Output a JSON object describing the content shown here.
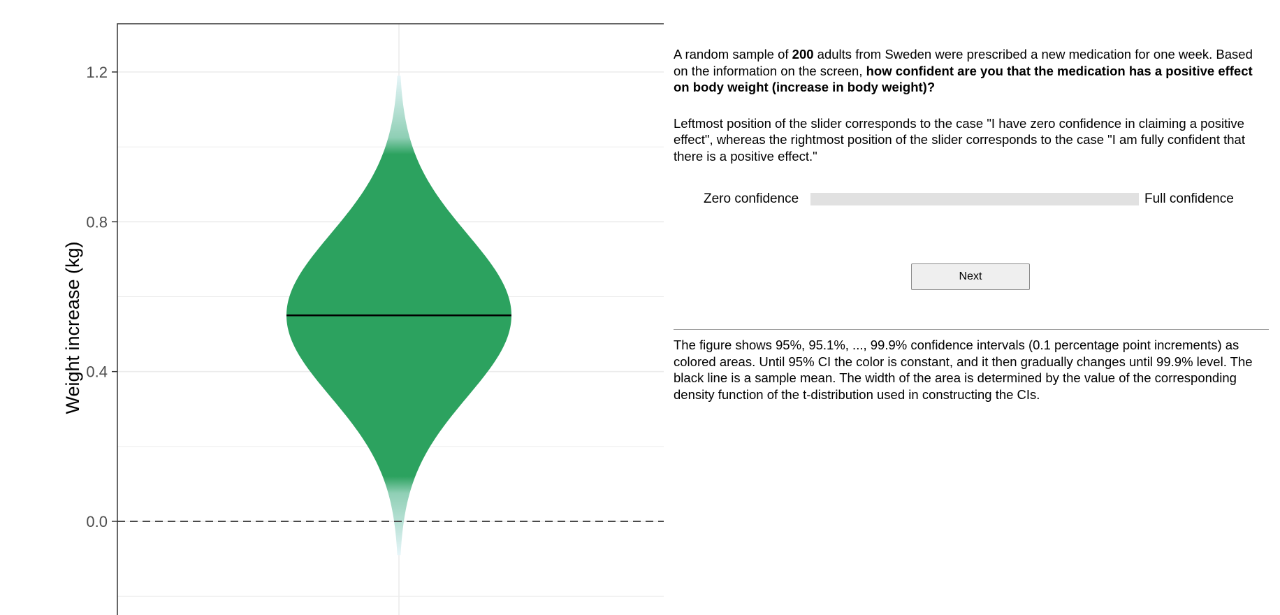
{
  "chart_data": {
    "type": "violin",
    "ylabel": "Weight increase (kg)",
    "yticks": [
      0.0,
      0.4,
      0.8,
      1.2
    ],
    "ytick_labels": [
      "0.0",
      "0.4",
      "0.8",
      "1.2"
    ],
    "ylim": [
      -0.22,
      1.33
    ],
    "mean": 0.55,
    "reference_line": 0.0,
    "ci95": [
      0.12,
      0.98
    ],
    "ci999": [
      -0.09,
      1.19
    ],
    "grid": true,
    "fill_color": "#2ca25f",
    "tail_color": "#e6f5f9"
  },
  "panel": {
    "question": {
      "p1": "A random sample of ",
      "n": "200",
      "p2": " adults from Sweden were prescribed a new medication for one week. Based on the information on the screen, ",
      "bold": "how confident are you that the medication has a positive effect on body weight (increase in body weight)?"
    },
    "instructions": "Leftmost position of the slider corresponds to the case \"I have zero confidence in claiming a positive effect\", whereas the rightmost position of the slider corresponds to the case \"I am fully confident that there is a positive effect.\"",
    "slider": {
      "left_label": "Zero confidence",
      "right_label": "Full confidence"
    },
    "next_label": "Next",
    "note": "The figure shows 95%, 95.1%, ..., 99.9% confidence intervals (0.1 percentage point increments) as colored areas. Until 95% CI the color is constant, and it then gradually changes until 99.9% level. The black line is a sample mean. The width of the area is determined by the value of the corresponding density function of the t-distribution used in constructing the CIs."
  }
}
